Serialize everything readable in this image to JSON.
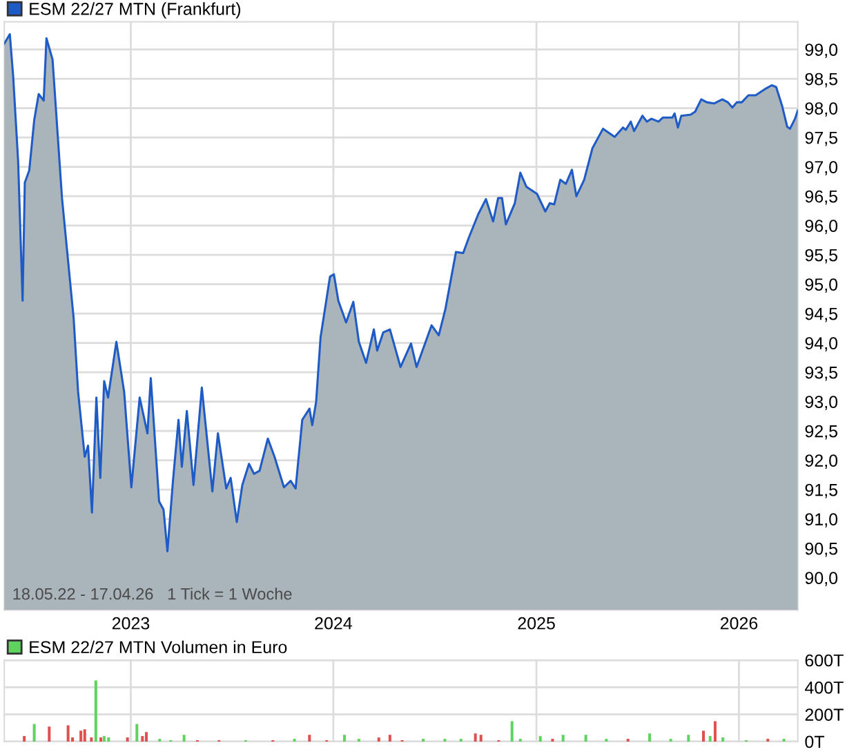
{
  "chart_data": [
    {
      "type": "area",
      "legend": "top left",
      "grid": true,
      "tick_labels": "xy",
      "annotations": [
        "18.05.22 - 17.04.26   1 Tick = 1 Woche"
      ],
      "xlim": [
        "2022-05-18",
        "2026-04-17"
      ],
      "xticks": [
        {
          "value": "2023-01-01",
          "label": "2023"
        },
        {
          "value": "2024-01-01",
          "label": "2024"
        },
        {
          "value": "2025-01-01",
          "label": "2025"
        },
        {
          "value": "2026-01-01",
          "label": "2026"
        }
      ],
      "ylim": [
        89.45,
        99.47
      ],
      "yticks": [
        {
          "value": 90.0,
          "label": "90,0"
        },
        {
          "value": 90.5,
          "label": "90,5"
        },
        {
          "value": 91.0,
          "label": "91,0"
        },
        {
          "value": 91.5,
          "label": "91,5"
        },
        {
          "value": 92.0,
          "label": "92,0"
        },
        {
          "value": 92.5,
          "label": "92,5"
        },
        {
          "value": 93.0,
          "label": "93,0"
        },
        {
          "value": 93.5,
          "label": "93,5"
        },
        {
          "value": 94.0,
          "label": "94,0"
        },
        {
          "value": 94.5,
          "label": "94,5"
        },
        {
          "value": 95.0,
          "label": "95,0"
        },
        {
          "value": 95.5,
          "label": "95,5"
        },
        {
          "value": 96.0,
          "label": "96,0"
        },
        {
          "value": 96.5,
          "label": "96,5"
        },
        {
          "value": 97.0,
          "label": "97,0"
        },
        {
          "value": 97.5,
          "label": "97,5"
        },
        {
          "value": 98.0,
          "label": "98,0"
        },
        {
          "value": 98.5,
          "label": "98,5"
        },
        {
          "value": 99.0,
          "label": "99,0"
        }
      ],
      "series": [
        {
          "name": "ESM 22/27 MTN (Frankfurt)",
          "color": "#1f5bc6",
          "x": [
            "2022-05-18",
            "2022-05-28",
            "2022-06-03",
            "2022-06-12",
            "2022-06-20",
            "2022-06-24",
            "2022-07-02",
            "2022-07-11",
            "2022-07-19",
            "2022-07-28",
            "2022-08-02",
            "2022-08-13",
            "2022-08-30",
            "2022-09-20",
            "2022-09-28",
            "2022-10-10",
            "2022-10-16",
            "2022-10-23",
            "2022-10-31",
            "2022-11-07",
            "2022-11-14",
            "2022-11-21",
            "2022-12-06",
            "2022-12-20",
            "2023-01-02",
            "2023-01-17",
            "2023-01-31",
            "2023-02-06",
            "2023-02-21",
            "2023-03-01",
            "2023-03-08",
            "2023-03-18",
            "2023-03-28",
            "2023-04-03",
            "2023-04-12",
            "2023-04-24",
            "2023-05-09",
            "2023-05-28",
            "2023-06-07",
            "2023-06-22",
            "2023-06-30",
            "2023-07-11",
            "2023-07-21",
            "2023-08-02",
            "2023-08-11",
            "2023-08-21",
            "2023-09-05",
            "2023-09-17",
            "2023-10-04",
            "2023-10-16",
            "2023-10-25",
            "2023-11-06",
            "2023-11-19",
            "2023-11-24",
            "2023-12-01",
            "2023-12-09",
            "2023-12-26",
            "2024-01-02",
            "2024-01-10",
            "2024-01-24",
            "2024-02-06",
            "2024-02-16",
            "2024-02-29",
            "2024-03-14",
            "2024-03-20",
            "2024-03-31",
            "2024-04-12",
            "2024-05-01",
            "2024-05-20",
            "2024-05-30",
            "2024-06-26",
            "2024-07-09",
            "2024-07-21",
            "2024-08-09",
            "2024-08-22",
            "2024-09-01",
            "2024-09-18",
            "2024-10-02",
            "2024-10-15",
            "2024-10-24",
            "2024-10-31",
            "2024-11-07",
            "2024-11-23",
            "2024-12-03",
            "2024-12-14",
            "2025-01-02",
            "2025-01-17",
            "2025-01-25",
            "2025-02-02",
            "2025-02-13",
            "2025-02-23",
            "2025-03-06",
            "2025-03-14",
            "2025-03-28",
            "2025-04-12",
            "2025-05-01",
            "2025-05-22",
            "2025-06-06",
            "2025-06-11",
            "2025-06-20",
            "2025-06-26",
            "2025-07-11",
            "2025-07-19",
            "2025-07-27",
            "2025-08-09",
            "2025-08-17",
            "2025-09-03",
            "2025-09-07",
            "2025-09-13",
            "2025-09-19",
            "2025-10-06",
            "2025-10-14",
            "2025-10-25",
            "2025-11-04",
            "2025-11-17",
            "2025-12-02",
            "2025-12-12",
            "2025-12-20",
            "2025-12-28",
            "2026-01-06",
            "2026-01-18",
            "2026-01-31",
            "2026-02-16",
            "2026-03-01",
            "2026-03-09",
            "2026-03-20",
            "2026-03-29",
            "2026-04-03",
            "2026-04-12",
            "2026-04-17"
          ],
          "values": [
            99.1,
            99.26,
            98.55,
            97.09,
            94.72,
            96.73,
            96.94,
            97.8,
            98.24,
            98.13,
            99.19,
            98.83,
            96.47,
            94.42,
            93.17,
            92.06,
            92.25,
            91.11,
            93.07,
            91.7,
            93.35,
            93.07,
            94.02,
            93.17,
            91.54,
            93.07,
            92.46,
            93.4,
            91.3,
            91.16,
            90.45,
            91.65,
            92.69,
            91.89,
            92.84,
            91.58,
            93.24,
            91.47,
            92.46,
            91.52,
            91.7,
            90.95,
            91.58,
            91.94,
            91.77,
            91.82,
            92.37,
            92.06,
            91.54,
            91.65,
            91.52,
            92.69,
            92.88,
            92.6,
            93.0,
            94.1,
            95.13,
            95.17,
            94.72,
            94.35,
            94.7,
            94.02,
            93.66,
            94.23,
            93.87,
            94.18,
            94.23,
            93.59,
            93.99,
            93.59,
            94.3,
            94.13,
            94.58,
            95.55,
            95.53,
            95.79,
            96.19,
            96.45,
            96.07,
            96.47,
            96.47,
            96.02,
            96.38,
            96.9,
            96.66,
            96.54,
            96.24,
            96.38,
            96.36,
            96.78,
            96.71,
            96.95,
            96.5,
            96.78,
            97.32,
            97.65,
            97.51,
            97.67,
            97.63,
            97.77,
            97.61,
            97.87,
            97.77,
            97.82,
            97.77,
            97.84,
            97.84,
            97.91,
            97.67,
            97.87,
            97.89,
            97.94,
            98.15,
            98.1,
            98.08,
            98.15,
            98.1,
            98.01,
            98.1,
            98.1,
            98.22,
            98.22,
            98.32,
            98.39,
            98.36,
            98.03,
            97.68,
            97.65,
            97.82,
            97.96
          ]
        }
      ]
    },
    {
      "type": "bar",
      "legend": "top left",
      "grid": true,
      "tick_labels": "y",
      "xlim": [
        "2022-05-18",
        "2026-04-17"
      ],
      "xticks": [
        {
          "value": "2023-01-01",
          "label": null
        },
        {
          "value": "2024-01-01",
          "label": null
        },
        {
          "value": "2025-01-01",
          "label": null
        },
        {
          "value": "2026-01-01",
          "label": null
        }
      ],
      "ylim": [
        0,
        600
      ],
      "yticks": [
        {
          "value": 0,
          "label": "0T"
        },
        {
          "value": 200,
          "label": "200T"
        },
        {
          "value": 400,
          "label": "400T"
        },
        {
          "value": 600,
          "label": "600T"
        }
      ],
      "series": [
        {
          "name": "ESM 22/27 MTN Volumen in Euro",
          "color": "#5fd35f",
          "x": [
            "2022-06-23",
            "2022-07-11",
            "2022-08-07",
            "2022-09-10",
            "2022-09-18",
            "2022-10-03",
            "2022-10-10",
            "2022-10-22",
            "2022-10-30",
            "2022-11-08",
            "2022-11-14",
            "2022-11-22",
            "2022-12-26",
            "2023-01-12",
            "2023-01-22",
            "2023-01-29",
            "2023-02-22",
            "2023-03-14",
            "2023-04-07",
            "2023-05-01",
            "2023-06-09",
            "2023-07-27",
            "2023-09-14",
            "2023-10-23",
            "2023-11-19",
            "2023-12-20",
            "2024-01-21",
            "2024-02-16",
            "2024-03-23",
            "2024-04-12",
            "2024-05-04",
            "2024-06-11",
            "2024-07-20",
            "2024-08-18",
            "2024-09-13",
            "2024-09-23",
            "2024-10-25",
            "2024-11-18",
            "2024-12-03",
            "2025-01-08",
            "2025-01-30",
            "2025-02-18",
            "2025-03-31",
            "2025-05-07",
            "2025-06-15",
            "2025-07-24",
            "2025-08-31",
            "2025-10-02",
            "2025-10-29",
            "2025-11-10",
            "2025-11-19",
            "2025-12-03",
            "2026-01-14",
            "2026-02-22",
            "2026-03-23"
          ],
          "values": [
            40,
            130,
            110,
            120,
            30,
            80,
            90,
            30,
            450,
            30,
            40,
            30,
            30,
            130,
            40,
            70,
            20,
            10,
            50,
            10,
            10,
            10,
            10,
            20,
            50,
            10,
            50,
            20,
            30,
            50,
            10,
            20,
            20,
            20,
            60,
            50,
            10,
            150,
            20,
            40,
            20,
            50,
            50,
            20,
            20,
            60,
            20,
            50,
            80,
            40,
            150,
            30,
            10,
            20,
            20
          ],
          "colors": [
            "#e05050",
            "#5fd35f",
            "#e05050",
            "#e05050",
            "#e05050",
            "#e05050",
            "#e05050",
            "#e05050",
            "#5fd35f",
            "#e05050",
            "#5fd35f",
            "#5fd35f",
            "#e05050",
            "#5fd35f",
            "#e05050",
            "#e05050",
            "#5fd35f",
            "#5fd35f",
            "#5fd35f",
            "#e05050",
            "#e05050",
            "#5fd35f",
            "#e05050",
            "#5fd35f",
            "#e05050",
            "#e05050",
            "#5fd35f",
            "#5fd35f",
            "#e05050",
            "#e05050",
            "#e05050",
            "#5fd35f",
            "#5fd35f",
            "#5fd35f",
            "#e05050",
            "#e05050",
            "#e05050",
            "#5fd35f",
            "#5fd35f",
            "#5fd35f",
            "#e05050",
            "#5fd35f",
            "#5fd35f",
            "#5fd35f",
            "#e05050",
            "#5fd35f",
            "#5fd35f",
            "#5fd35f",
            "#e05050",
            "#5fd35f",
            "#e05050",
            "#5fd35f",
            "#5fd35f",
            "#e05050",
            "#5fd35f"
          ]
        }
      ]
    }
  ]
}
